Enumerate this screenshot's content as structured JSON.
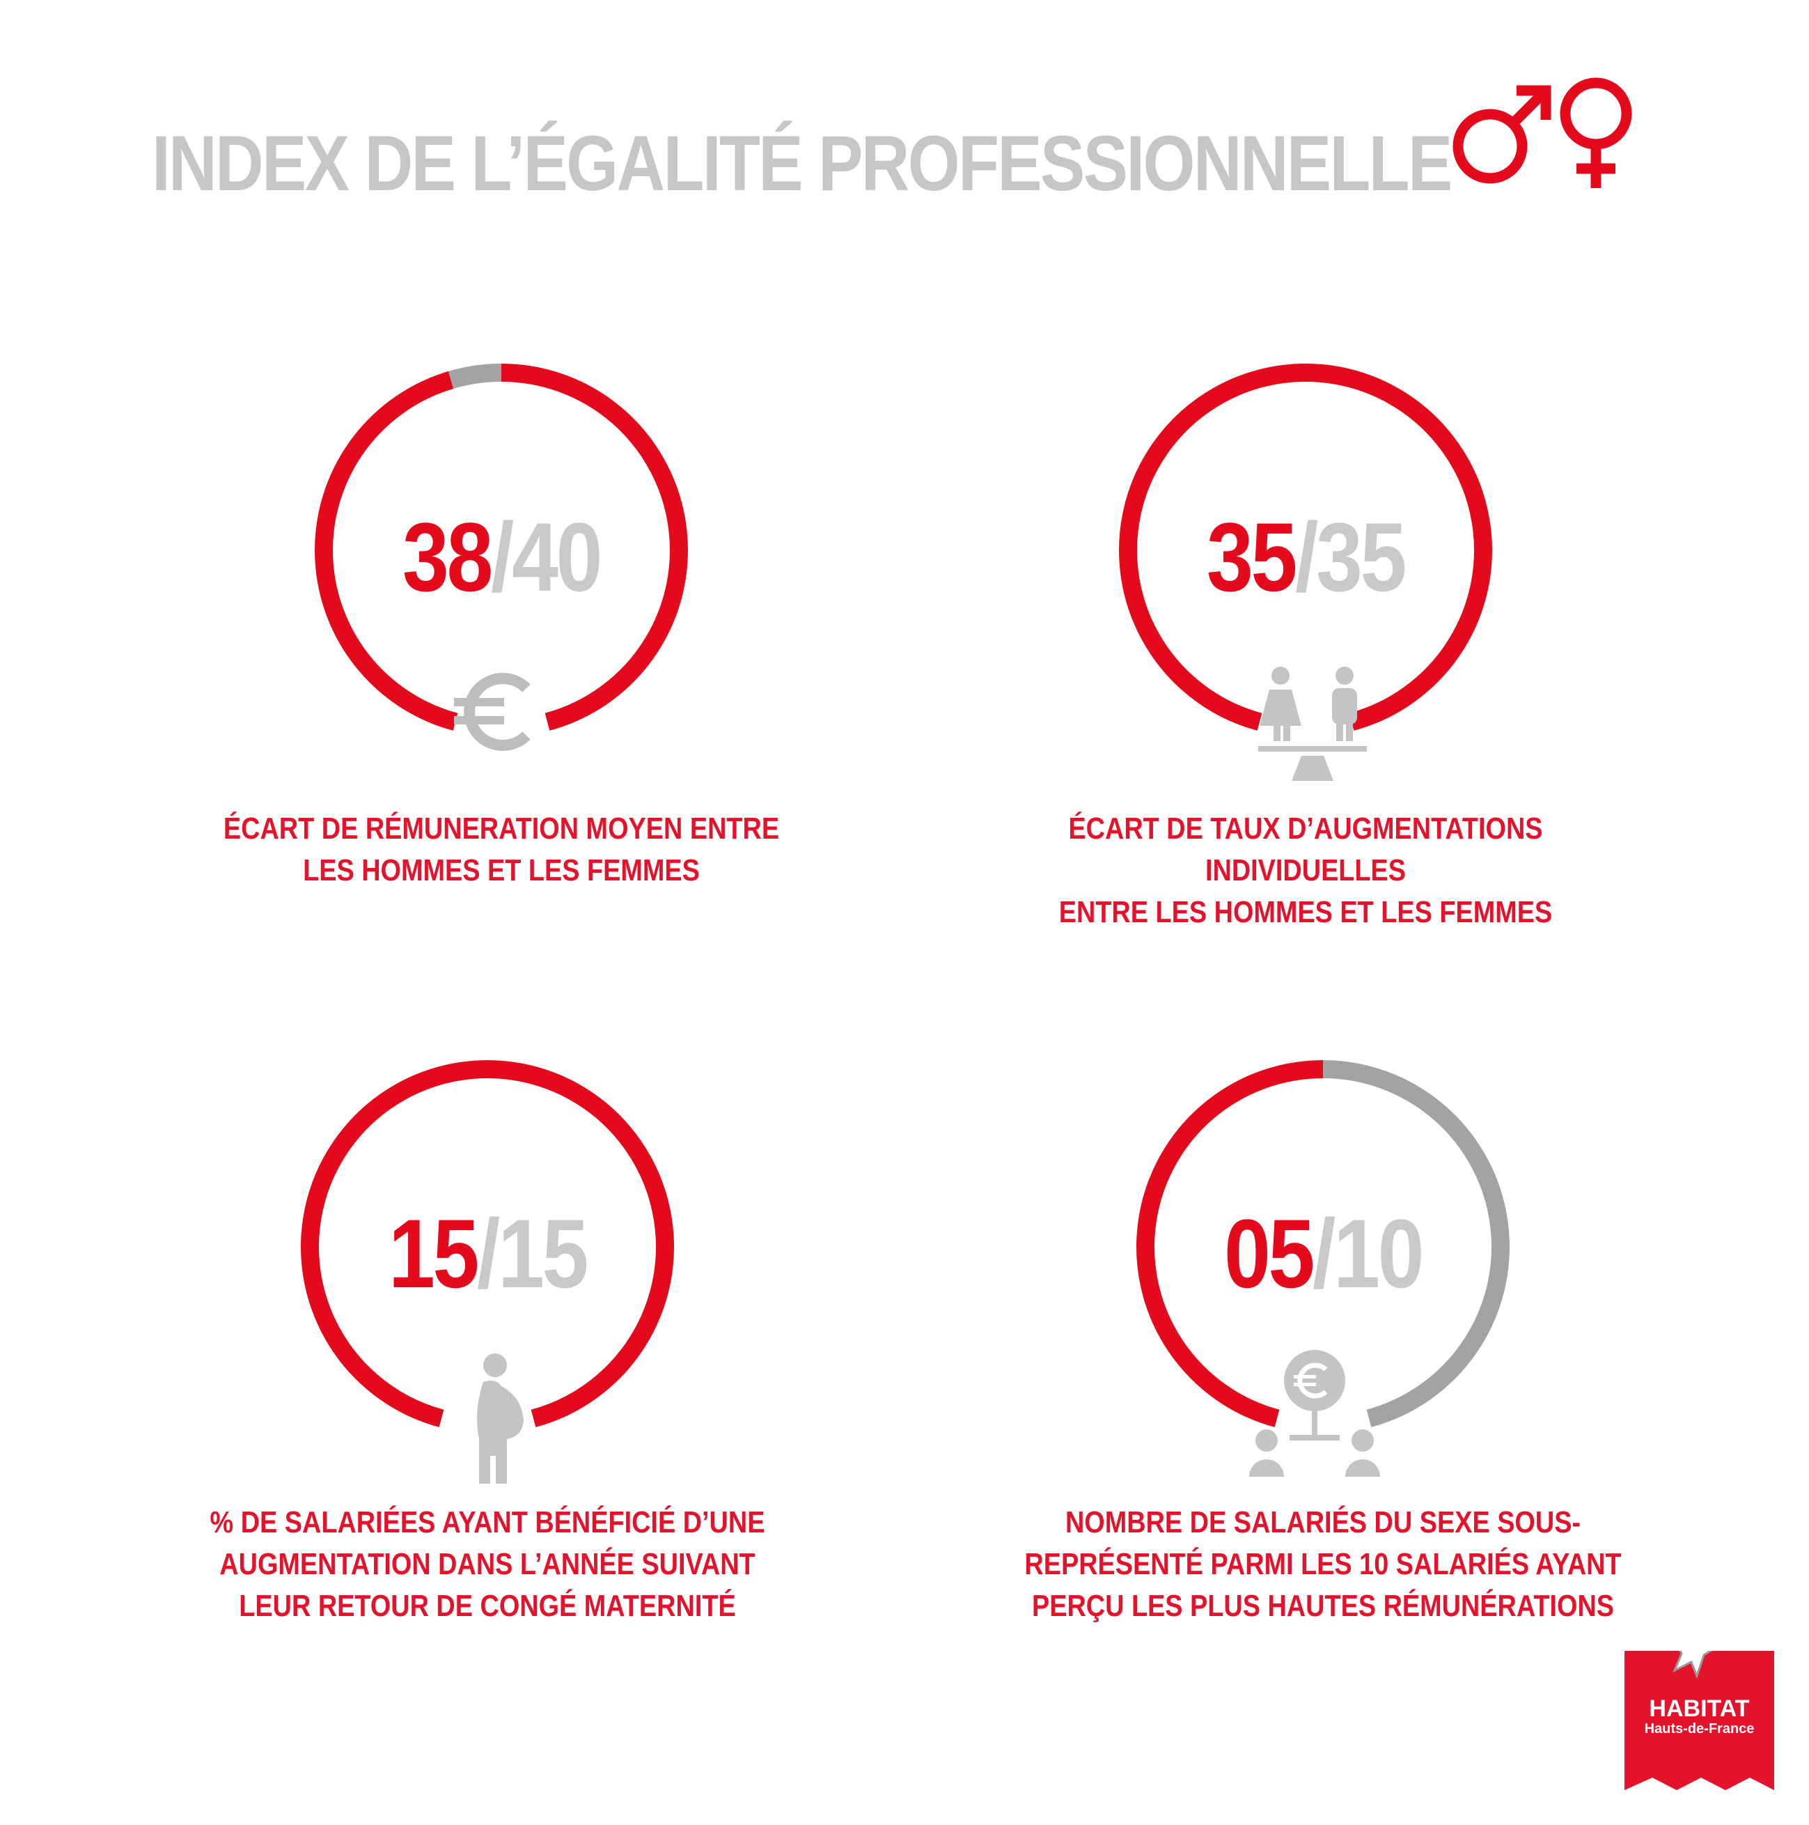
{
  "title": "INDEX DE L’ÉGALITÉ PROFESSIONNELLE",
  "colors": {
    "accent": "#e30a1c",
    "muted": "#a3a3a3",
    "text_grey": "#c6c6c6"
  },
  "header_icon": "male-female-symbols-icon",
  "indicators": [
    {
      "score": "38",
      "separator": "/",
      "max": "40",
      "points": 38,
      "max_points": 40,
      "icon": "euro-icon",
      "label": [
        "ÉCART DE RÉMUNERATION MOYEN ENTRE",
        "LES HOMMES ET LES FEMMES"
      ]
    },
    {
      "score": "35",
      "separator": "/",
      "max": "35",
      "points": 35,
      "max_points": 35,
      "icon": "balance-people-icon",
      "label": [
        "ÉCART DE TAUX D’AUGMENTATIONS INDIVIDUELLES",
        "ENTRE LES HOMMES ET LES FEMMES"
      ]
    },
    {
      "score": "15",
      "separator": "/",
      "max": "15",
      "points": 15,
      "max_points": 15,
      "icon": "pregnant-woman-icon",
      "label": [
        "% DE SALARIÉES AYANT BÉNÉFICIÉ D’UNE",
        "AUGMENTATION DANS L’ANNÉE SUIVANT",
        "LEUR RETOUR DE CONGÉ MATERNITÉ"
      ]
    },
    {
      "score": "05",
      "separator": "/",
      "max": "10",
      "points": 5,
      "max_points": 10,
      "icon": "top-salaries-people-icon",
      "label": [
        "NOMBRE DE SALARIÉS DU SEXE SOUS-",
        "REPRÉSENTÉ PARMI LES 10 SALARIÉS AYANT",
        "PERÇU LES PLUS HAUTES RÉMUNÉRATIONS"
      ]
    }
  ],
  "logo": {
    "line1": "HABITAT",
    "line2": "Hauts-de-France"
  }
}
